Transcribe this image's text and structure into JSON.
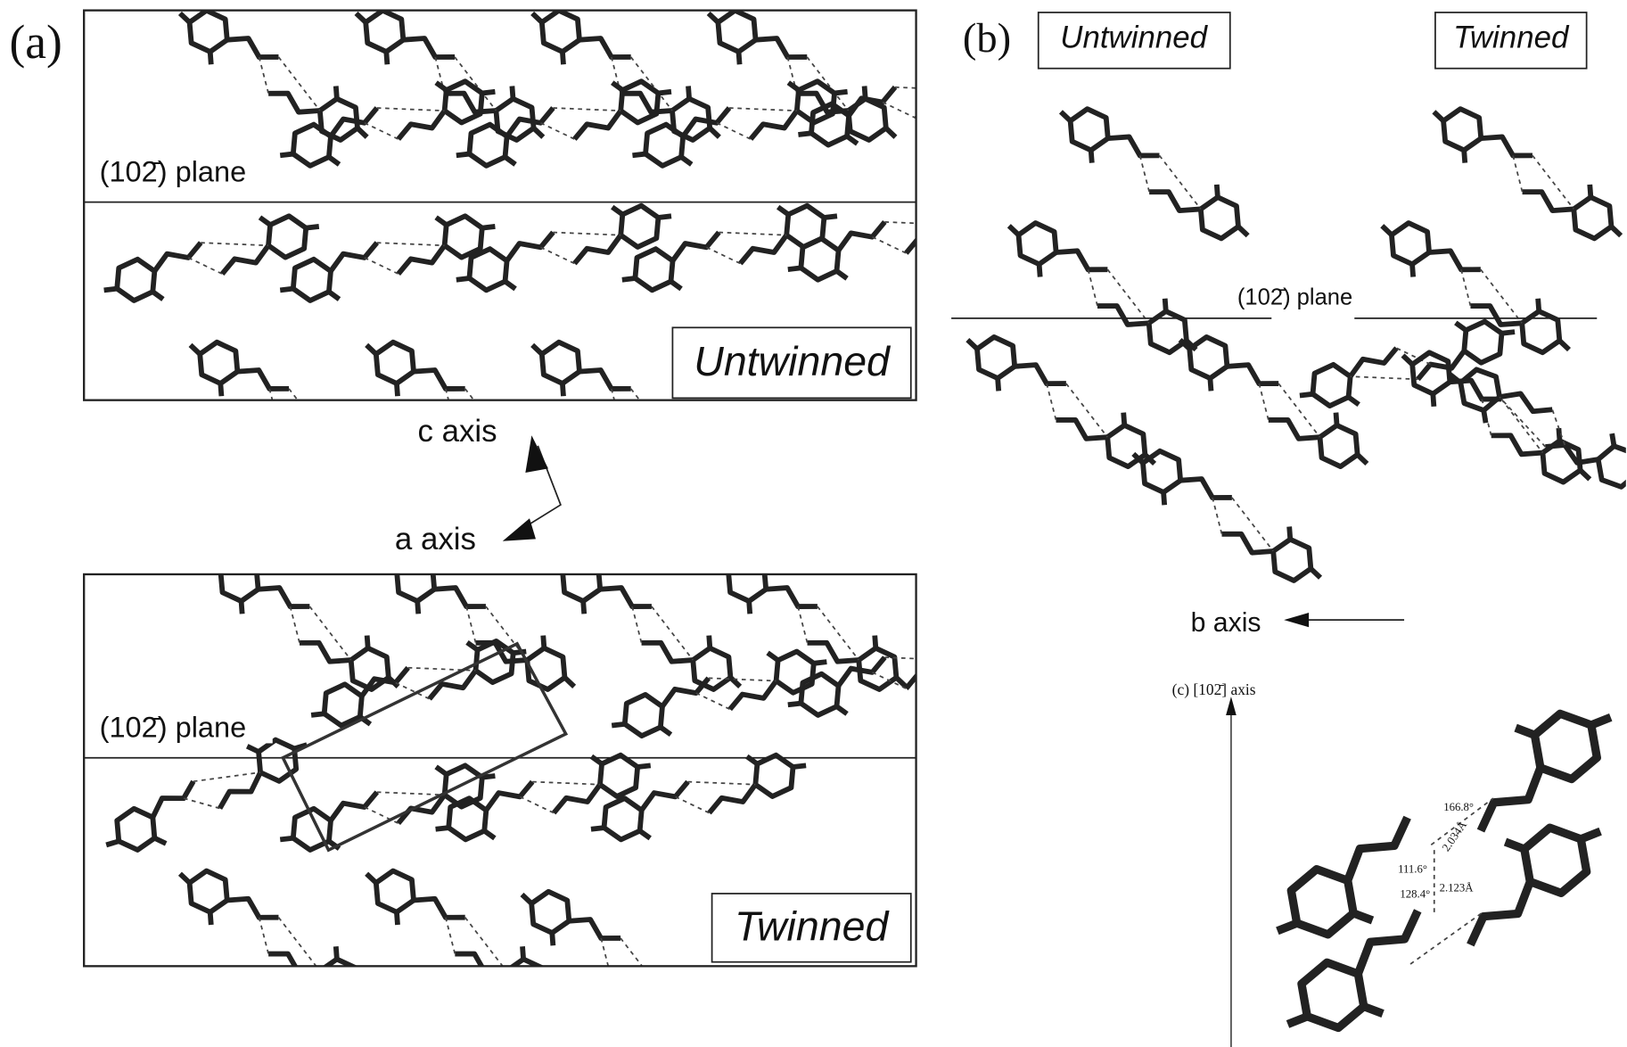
{
  "panel_a": {
    "label": "(a)",
    "untwinned": {
      "plane_label": "(102̄) plane",
      "box_label": "Untwinned"
    },
    "axes": {
      "c": "c axis",
      "a": "a axis"
    },
    "twinned": {
      "plane_label": "(102̄) plane",
      "box_label": "Twinned"
    }
  },
  "panel_b": {
    "label": "(b)",
    "untwinned_label": "Untwinned",
    "twinned_label": "Twinned",
    "plane_label": "(102̄) plane",
    "axis_label": "b axis"
  },
  "panel_c": {
    "label": "(c) [102̄] axis",
    "annotations": [
      "166.8°",
      "2.034Å",
      "111.6°",
      "2.123Å",
      "128.4°"
    ]
  }
}
